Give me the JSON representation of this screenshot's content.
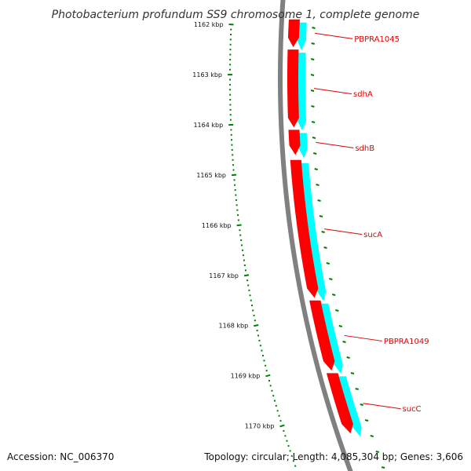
{
  "title": "Photobacterium profundum SS9 chromosome 1, complete genome",
  "footer": {
    "accession": "Accession: NC_006370",
    "summary": "Topology: circular; Length: 4,085,304 bp; Genes: 3,606"
  },
  "colors": {
    "gene_forward": "#ff0000",
    "gene_reverse": "#00ffff",
    "backbone": "#808080",
    "ruler": "#008000",
    "label": "#e00000"
  },
  "ruler": {
    "unit": "kbp",
    "ticks": [
      {
        "kbp": 1162,
        "label": "1162 kbp"
      },
      {
        "kbp": 1163,
        "label": "1163 kbp"
      },
      {
        "kbp": 1164,
        "label": "1164 kbp"
      },
      {
        "kbp": 1165,
        "label": "1165 kbp"
      },
      {
        "kbp": 1166,
        "label": "1166 kbp"
      },
      {
        "kbp": 1167,
        "label": "1167 kbp"
      },
      {
        "kbp": 1168,
        "label": "1168 kbp"
      },
      {
        "kbp": 1169,
        "label": "1169 kbp"
      },
      {
        "kbp": 1170,
        "label": "1170 kbp"
      }
    ]
  },
  "genes": [
    {
      "name": "PBPRA1045",
      "start_kbp": 1161.9,
      "end_kbp": 1162.45
    },
    {
      "name": "sdhA",
      "start_kbp": 1162.5,
      "end_kbp": 1164.05
    },
    {
      "name": "sdhB",
      "start_kbp": 1164.1,
      "end_kbp": 1164.6
    },
    {
      "name": "sucA",
      "start_kbp": 1164.7,
      "end_kbp": 1167.45
    },
    {
      "name": "PBPRA1049",
      "start_kbp": 1167.5,
      "end_kbp": 1168.9
    },
    {
      "name": "sucC",
      "start_kbp": 1168.95,
      "end_kbp": 1170.15
    }
  ]
}
